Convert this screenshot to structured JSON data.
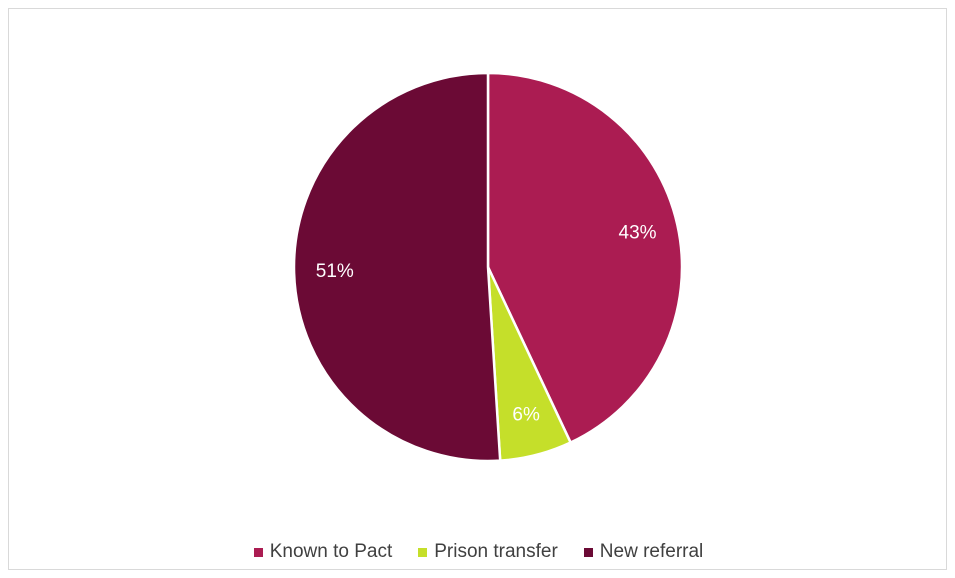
{
  "chart_data": {
    "type": "pie",
    "title": "",
    "legend_position": "bottom",
    "slices": [
      {
        "label": "Known to Pact",
        "value": 43,
        "data_label": "43%",
        "color": "#ab1c52"
      },
      {
        "label": "Prison transfer",
        "value": 6,
        "data_label": "6%",
        "color": "#c5df2a"
      },
      {
        "label": "New referral",
        "value": 51,
        "data_label": "51%",
        "color": "#6b0a35"
      }
    ]
  }
}
